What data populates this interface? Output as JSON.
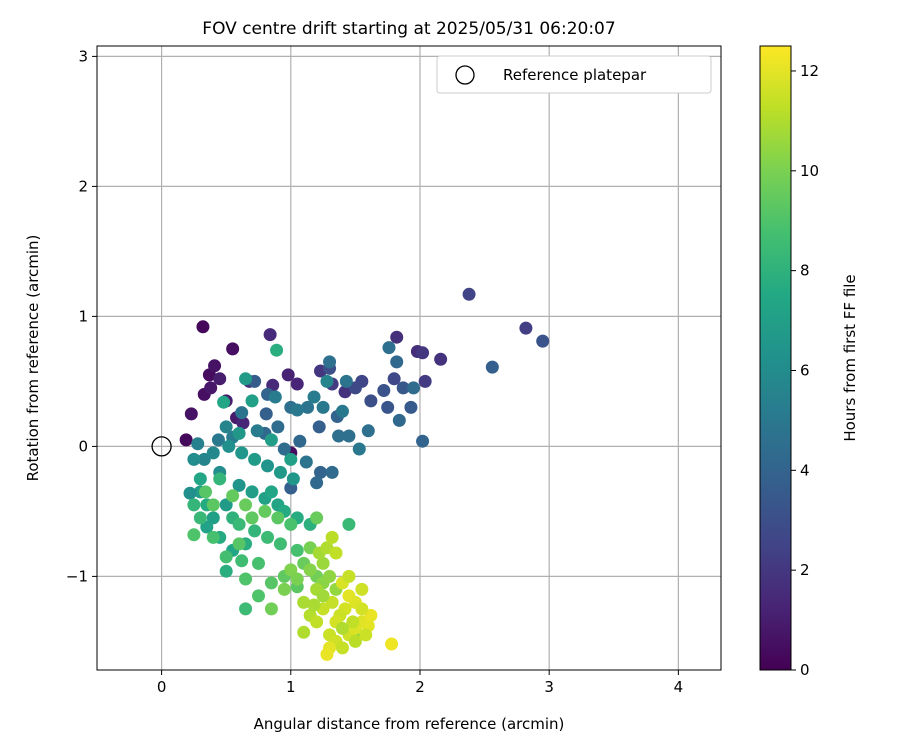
{
  "chart_data": {
    "type": "scatter",
    "title": "FOV centre drift starting at 2025/05/31 06:20:07",
    "xlabel": "Angular distance from reference (arcmin)",
    "ylabel": "Rotation from reference (arcmin)",
    "xlim": [
      -0.5,
      4.33
    ],
    "ylim": [
      -1.72,
      3.08
    ],
    "xticks": [
      0,
      1,
      2,
      3,
      4
    ],
    "yticks": [
      -1,
      0,
      1,
      2,
      3
    ],
    "xtick_labels": [
      "0",
      "1",
      "2",
      "3",
      "4"
    ],
    "ytick_labels": [
      "−1",
      "0",
      "1",
      "2",
      "3"
    ],
    "grid": true,
    "legend": {
      "position": "top-right",
      "label": "Reference platepar"
    },
    "reference_point": {
      "x": 0,
      "y": 0
    },
    "colorbar": {
      "label": "Hours from first FF file",
      "range": [
        0,
        12.5
      ],
      "ticks": [
        0,
        2,
        4,
        6,
        8,
        10,
        12
      ],
      "colormap": "viridis"
    },
    "points": [
      [
        0.19,
        0.05,
        0.3
      ],
      [
        0.23,
        0.25,
        0.6
      ],
      [
        0.32,
        0.92,
        0.2
      ],
      [
        0.33,
        0.4,
        0.5
      ],
      [
        0.37,
        0.55,
        0.4
      ],
      [
        0.41,
        0.62,
        0.6
      ],
      [
        0.38,
        0.45,
        0.8
      ],
      [
        0.45,
        0.52,
        1.0
      ],
      [
        0.55,
        0.75,
        0.5
      ],
      [
        0.5,
        0.35,
        1.0
      ],
      [
        0.58,
        0.22,
        0.9
      ],
      [
        0.63,
        0.18,
        1.3
      ],
      [
        0.84,
        0.86,
        1.5
      ],
      [
        0.68,
        0.5,
        1.7
      ],
      [
        0.86,
        0.47,
        1.5
      ],
      [
        0.98,
        0.55,
        1.2
      ],
      [
        1.05,
        0.48,
        1.3
      ],
      [
        1.23,
        0.58,
        2.0
      ],
      [
        1.32,
        0.48,
        2.2
      ],
      [
        1.42,
        0.42,
        1.8
      ],
      [
        1.0,
        -0.05,
        0.4
      ],
      [
        1.82,
        0.84,
        1.7
      ],
      [
        1.98,
        0.73,
        1.6
      ],
      [
        2.02,
        0.72,
        2.0
      ],
      [
        2.16,
        0.67,
        1.8
      ],
      [
        2.38,
        1.17,
        2.5
      ],
      [
        2.82,
        0.91,
        2.3
      ],
      [
        2.95,
        0.81,
        3.2
      ],
      [
        2.04,
        0.5,
        2.2
      ],
      [
        1.87,
        0.45,
        3.4
      ],
      [
        1.55,
        0.5,
        2.6
      ],
      [
        1.72,
        0.43,
        3.2
      ],
      [
        1.93,
        0.3,
        3.5
      ],
      [
        1.84,
        0.2,
        4.2
      ],
      [
        2.56,
        0.61,
        3.8
      ],
      [
        2.02,
        0.04,
        4.0
      ],
      [
        1.8,
        0.52,
        2.7
      ],
      [
        1.3,
        0.6,
        3.0
      ],
      [
        1.5,
        0.45,
        2.8
      ],
      [
        1.62,
        0.35,
        3.0
      ],
      [
        1.75,
        0.3,
        3.3
      ],
      [
        1.76,
        0.76,
        4.5
      ],
      [
        1.82,
        0.65,
        4.2
      ],
      [
        1.95,
        0.45,
        4.4
      ],
      [
        1.6,
        0.12,
        4.6
      ],
      [
        1.45,
        0.08,
        4.6
      ],
      [
        1.36,
        0.23,
        4.0
      ],
      [
        1.22,
        0.15,
        3.8
      ],
      [
        1.13,
        0.3,
        4.8
      ],
      [
        1.25,
        0.3,
        5.0
      ],
      [
        1.07,
        0.04,
        4.2
      ],
      [
        1.0,
        0.3,
        4.6
      ],
      [
        0.95,
        -0.02,
        4.4
      ],
      [
        1.12,
        -0.12,
        4.8
      ],
      [
        1.23,
        -0.2,
        4.0
      ],
      [
        1.32,
        -0.2,
        4.3
      ],
      [
        1.2,
        -0.28,
        4.2
      ],
      [
        1.0,
        -0.32,
        3.8
      ],
      [
        0.72,
        0.5,
        3.6
      ],
      [
        0.81,
        0.25,
        3.8
      ],
      [
        0.9,
        0.15,
        4.4
      ],
      [
        0.8,
        0.1,
        4.2
      ],
      [
        0.82,
        0.4,
        4.0
      ],
      [
        1.3,
        0.65,
        4.6
      ],
      [
        1.43,
        0.5,
        4.8
      ],
      [
        1.53,
        -0.02,
        5.0
      ],
      [
        1.18,
        0.38,
        5.2
      ],
      [
        1.28,
        0.5,
        5.6
      ],
      [
        1.4,
        0.27,
        5.0
      ],
      [
        1.05,
        0.28,
        5.0
      ],
      [
        1.37,
        0.08,
        4.6
      ],
      [
        0.88,
        0.38,
        5.2
      ],
      [
        0.62,
        0.26,
        4.8
      ],
      [
        0.74,
        0.12,
        5.2
      ],
      [
        0.55,
        0.07,
        5.3
      ],
      [
        0.5,
        0.15,
        5.6
      ],
      [
        0.44,
        0.05,
        5.0
      ],
      [
        0.28,
        0.02,
        5.4
      ],
      [
        0.33,
        -0.1,
        5.6
      ],
      [
        0.4,
        -0.05,
        5.8
      ],
      [
        0.45,
        -0.2,
        6.0
      ],
      [
        0.52,
        0.0,
        6.2
      ],
      [
        0.62,
        -0.05,
        6.5
      ],
      [
        0.72,
        -0.1,
        6.8
      ],
      [
        0.82,
        -0.15,
        6.4
      ],
      [
        0.92,
        -0.2,
        6.7
      ],
      [
        1.02,
        -0.25,
        6.6
      ],
      [
        0.6,
        -0.3,
        6.4
      ],
      [
        0.7,
        -0.35,
        6.9
      ],
      [
        0.8,
        -0.4,
        7.1
      ],
      [
        0.9,
        -0.45,
        7.3
      ],
      [
        0.5,
        -0.45,
        6.8
      ],
      [
        0.4,
        -0.55,
        7.0
      ],
      [
        0.35,
        -0.62,
        7.2
      ],
      [
        0.45,
        -0.7,
        7.6
      ],
      [
        0.55,
        -0.8,
        7.4
      ],
      [
        0.65,
        -0.75,
        7.8
      ],
      [
        0.3,
        -0.35,
        6.9
      ],
      [
        0.22,
        -0.36,
        6.2
      ],
      [
        0.25,
        -0.1,
        6.0
      ],
      [
        0.65,
        0.52,
        6.8
      ],
      [
        0.7,
        0.35,
        7.0
      ],
      [
        0.6,
        0.1,
        6.6
      ],
      [
        0.85,
        0.05,
        6.9
      ],
      [
        1.0,
        -0.1,
        7.0
      ],
      [
        0.89,
        0.74,
        7.8
      ],
      [
        0.48,
        0.34,
        7.4
      ],
      [
        0.5,
        -0.96,
        7.8
      ],
      [
        0.85,
        -0.35,
        7.4
      ],
      [
        0.95,
        -0.5,
        7.6
      ],
      [
        1.05,
        -0.55,
        7.7
      ],
      [
        1.15,
        -0.6,
        7.9
      ],
      [
        0.3,
        -0.25,
        7.4
      ],
      [
        0.35,
        -0.45,
        7.6
      ],
      [
        0.55,
        -0.55,
        8.0
      ],
      [
        0.45,
        -0.25,
        8.2
      ],
      [
        0.6,
        -0.6,
        8.4
      ],
      [
        0.72,
        -0.65,
        8.2
      ],
      [
        0.82,
        -0.7,
        8.5
      ],
      [
        0.92,
        -0.75,
        8.6
      ],
      [
        0.4,
        -0.7,
        8.8
      ],
      [
        0.5,
        -0.85,
        8.7
      ],
      [
        0.62,
        -0.88,
        8.6
      ],
      [
        0.75,
        -0.9,
        8.8
      ],
      [
        0.3,
        -0.55,
        8.3
      ],
      [
        0.25,
        -0.45,
        8.2
      ],
      [
        1.45,
        -0.6,
        8.4
      ],
      [
        0.65,
        -1.25,
        8.5
      ],
      [
        1.0,
        -0.6,
        8.9
      ],
      [
        1.05,
        -0.8,
        8.8
      ],
      [
        0.75,
        -1.15,
        9.0
      ],
      [
        0.65,
        -1.02,
        9.0
      ],
      [
        0.85,
        -1.05,
        9.2
      ],
      [
        0.95,
        -1.0,
        9.4
      ],
      [
        1.05,
        -1.08,
        9.3
      ],
      [
        0.6,
        -0.75,
        9.2
      ],
      [
        0.7,
        -0.55,
        9.4
      ],
      [
        0.8,
        -0.5,
        9.5
      ],
      [
        0.9,
        -0.55,
        9.3
      ],
      [
        0.25,
        -0.68,
        9.0
      ],
      [
        0.34,
        -0.35,
        9.2
      ],
      [
        0.4,
        -0.45,
        9.3
      ],
      [
        0.55,
        -0.38,
        9.5
      ],
      [
        0.65,
        -0.45,
        9.6
      ],
      [
        0.85,
        -1.25,
        9.8
      ],
      [
        1.1,
        -0.9,
        9.6
      ],
      [
        1.2,
        -1.0,
        9.8
      ],
      [
        1.2,
        -0.55,
        9.6
      ],
      [
        1.15,
        -0.78,
        9.9
      ],
      [
        1.5,
        -1.48,
        9.8
      ],
      [
        0.95,
        -1.1,
        10.0
      ],
      [
        1.0,
        -0.95,
        10.1
      ],
      [
        1.05,
        -1.02,
        10.0
      ],
      [
        1.15,
        -0.95,
        10.2
      ],
      [
        1.25,
        -1.05,
        10.3
      ],
      [
        1.3,
        -1.0,
        10.4
      ],
      [
        1.35,
        -1.1,
        10.5
      ],
      [
        1.25,
        -0.9,
        10.6
      ],
      [
        1.22,
        -0.82,
        10.8
      ],
      [
        1.28,
        -0.78,
        11.0
      ],
      [
        1.32,
        -0.7,
        11.2
      ],
      [
        1.35,
        -0.82,
        11.3
      ],
      [
        1.1,
        -1.43,
        11.0
      ],
      [
        1.15,
        -1.3,
        11.1
      ],
      [
        1.2,
        -1.35,
        11.3
      ],
      [
        1.25,
        -1.25,
        11.4
      ],
      [
        1.3,
        -1.45,
        11.5
      ],
      [
        1.35,
        -1.5,
        11.6
      ],
      [
        1.4,
        -1.55,
        11.4
      ],
      [
        1.45,
        -1.45,
        11.6
      ],
      [
        1.5,
        -1.4,
        11.8
      ],
      [
        1.55,
        -1.35,
        11.9
      ],
      [
        1.6,
        -1.38,
        12.0
      ],
      [
        1.62,
        -1.3,
        12.1
      ],
      [
        1.78,
        -1.52,
        12.2
      ],
      [
        1.3,
        -1.55,
        12.0
      ],
      [
        1.28,
        -1.6,
        12.1
      ],
      [
        1.4,
        -1.05,
        11.8
      ],
      [
        1.45,
        -1.15,
        12.0
      ],
      [
        1.5,
        -1.2,
        11.9
      ],
      [
        1.55,
        -1.1,
        11.6
      ],
      [
        1.42,
        -1.25,
        11.7
      ],
      [
        1.38,
        -1.3,
        11.5
      ],
      [
        1.32,
        -1.2,
        11.4
      ],
      [
        1.48,
        -1.35,
        11.3
      ],
      [
        1.35,
        -1.35,
        11.7
      ],
      [
        1.4,
        -1.4,
        11.0
      ],
      [
        1.2,
        -1.1,
        10.8
      ],
      [
        1.1,
        -1.2,
        10.9
      ],
      [
        1.5,
        -1.5,
        11.2
      ],
      [
        1.58,
        -1.45,
        11.5
      ],
      [
        1.45,
        -1.0,
        11.4
      ],
      [
        1.55,
        -1.25,
        11.7
      ],
      [
        1.25,
        -1.15,
        10.7
      ],
      [
        1.18,
        -1.22,
        10.9
      ]
    ]
  }
}
